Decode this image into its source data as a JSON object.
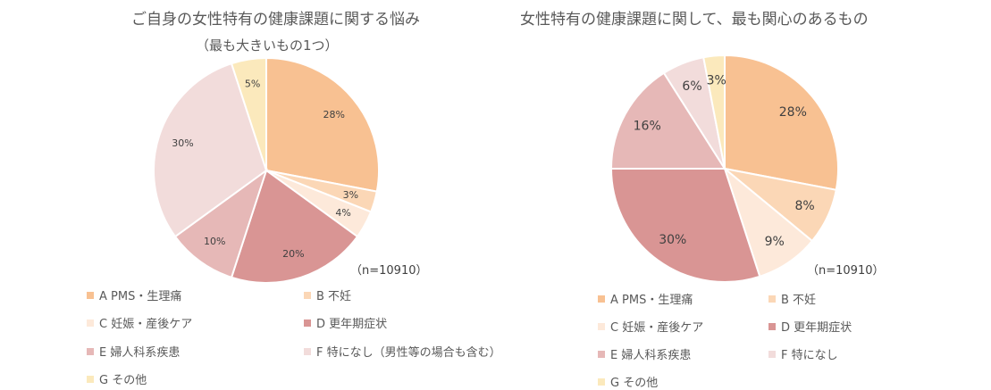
{
  "chart_data": [
    {
      "type": "pie",
      "title": "ご自身の女性特有の健康課題に関する悩み",
      "subtitle": "（最も大きいもの1つ）",
      "note": "（n=10910）",
      "categories": [
        "A PMS・生理痛",
        "B 不妊",
        "C 妊娠・産後ケア",
        "D 更年期症状",
        "E 婦人科系疾患",
        "F 特になし（男性等の場合も含む）",
        "G その他"
      ],
      "values": [
        28,
        3,
        4,
        20,
        10,
        30,
        5
      ],
      "labels": [
        "28%",
        "3%",
        "4%",
        "20%",
        "10%",
        "30%",
        "5%"
      ],
      "colors": [
        "#F8C192",
        "#FBD7B6",
        "#FDE9DA",
        "#D99594",
        "#E6B8B7",
        "#F2DCDB",
        "#FBE9BC"
      ],
      "legend_position": "bottom"
    },
    {
      "type": "pie",
      "title": "女性特有の健康課題に関して、最も関心のあるもの",
      "note": "（n=10910）",
      "categories": [
        "A PMS・生理痛",
        "B 不妊",
        "C 妊娠・産後ケア",
        "D 更年期症状",
        "E 婦人科系疾患",
        "F 特になし",
        "G その他"
      ],
      "values": [
        28,
        8,
        9,
        30,
        16,
        6,
        3
      ],
      "labels": [
        "28%",
        "8%",
        "9%",
        "30%",
        "16%",
        "6%",
        "3%"
      ],
      "colors": [
        "#F8C192",
        "#FBD7B6",
        "#FDE9DA",
        "#D99594",
        "#E6B8B7",
        "#F2DCDB",
        "#FBE9BC"
      ],
      "legend_position": "bottom"
    }
  ]
}
